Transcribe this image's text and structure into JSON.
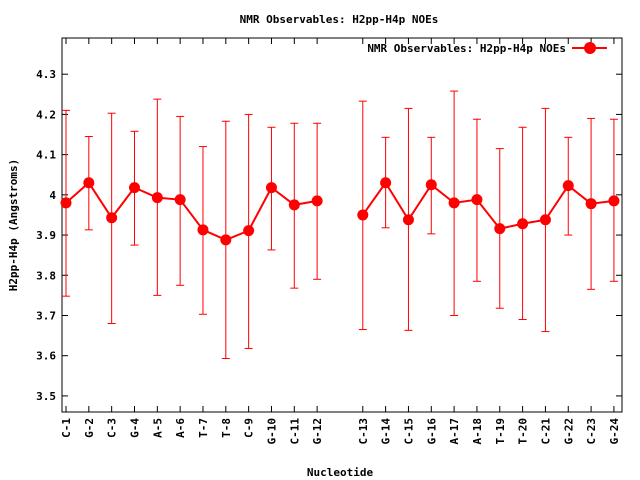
{
  "chart_data": {
    "type": "line",
    "title": "NMR Observables: H2pp-H4p NOEs",
    "xlabel": "Nucleotide",
    "ylabel": "H2pp-H4p (Angstroms)",
    "ylim": [
      3.46,
      4.39
    ],
    "yticks": [
      "3.5",
      "3.6",
      "3.7",
      "3.8",
      "3.9",
      "4",
      "4.1",
      "4.2",
      "4.3"
    ],
    "grid": false,
    "legend_position": "top-right",
    "color": "#ff0000",
    "series": [
      {
        "name": "NMR Observables: H2pp-H4p NOEs",
        "segments": [
          {
            "categories": [
              "C-1",
              "G-2",
              "C-3",
              "G-4",
              "A-5",
              "A-6",
              "T-7",
              "T-8",
              "C-9",
              "G-10",
              "C-11",
              "G-12"
            ],
            "values": [
              3.98,
              4.03,
              3.943,
              4.018,
              3.993,
              3.988,
              3.913,
              3.888,
              3.911,
              4.018,
              3.975,
              3.985
            ],
            "err_low": [
              3.748,
              3.913,
              3.68,
              3.875,
              3.75,
              3.775,
              3.703,
              3.593,
              3.618,
              3.863,
              3.768,
              3.79
            ],
            "err_high": [
              4.21,
              4.145,
              4.203,
              4.158,
              4.238,
              4.195,
              4.12,
              4.183,
              4.2,
              4.168,
              4.178,
              4.178
            ]
          },
          {
            "categories": [
              "C-13",
              "G-14",
              "C-15",
              "G-16",
              "A-17",
              "A-18",
              "T-19",
              "T-20",
              "C-21",
              "G-22",
              "C-23",
              "G-24"
            ],
            "values": [
              3.95,
              4.03,
              3.938,
              4.025,
              3.98,
              3.988,
              3.916,
              3.928,
              3.938,
              4.023,
              3.978,
              3.985
            ],
            "err_low": [
              3.665,
              3.918,
              3.663,
              3.903,
              3.7,
              3.785,
              3.718,
              3.69,
              3.66,
              3.9,
              3.765,
              3.785
            ],
            "err_high": [
              4.233,
              4.143,
              4.215,
              4.143,
              4.258,
              4.188,
              4.115,
              4.168,
              4.215,
              4.143,
              4.19,
              4.188
            ]
          }
        ]
      }
    ]
  }
}
